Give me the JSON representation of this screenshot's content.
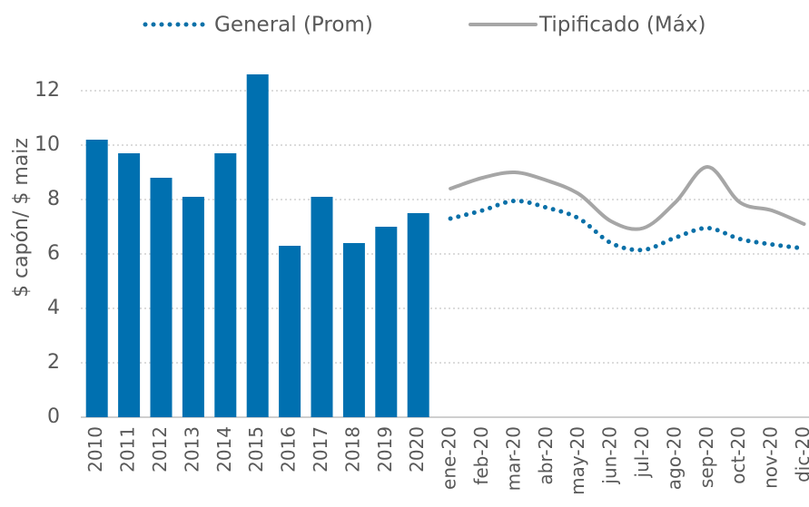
{
  "chart_data": {
    "type": "bar_line",
    "ylabel": "$ capón/ $ maiz",
    "categories": [
      "2010",
      "2011",
      "2012",
      "2013",
      "2014",
      "2015",
      "2016",
      "2017",
      "2018",
      "2019",
      "2020",
      "ene-20",
      "feb-20",
      "mar-20",
      "abr-20",
      "may-20",
      "jun-20",
      "jul-20",
      "ago-20",
      "sep-20",
      "oct-20",
      "nov-20",
      "dic-20"
    ],
    "series": [
      {
        "type": "bar",
        "color": "#0070b0",
        "values": [
          10.2,
          9.7,
          8.8,
          8.1,
          9.7,
          12.6,
          6.3,
          8.1,
          6.4,
          7.0,
          7.5,
          null,
          null,
          null,
          null,
          null,
          null,
          null,
          null,
          null,
          null,
          null,
          null
        ]
      },
      {
        "type": "line",
        "name": "General (Prom)",
        "color": "#0a70a8",
        "dash": "dotted",
        "values": [
          null,
          null,
          null,
          null,
          null,
          null,
          null,
          null,
          null,
          null,
          null,
          7.3,
          7.6,
          7.95,
          7.7,
          7.3,
          6.4,
          6.15,
          6.6,
          6.95,
          6.55,
          6.35,
          6.2
        ]
      },
      {
        "type": "line",
        "name": "Tipificado (Máx)",
        "color": "#a6a6a6",
        "dash": "solid",
        "values": [
          null,
          null,
          null,
          null,
          null,
          null,
          null,
          null,
          null,
          null,
          null,
          8.4,
          8.8,
          9.0,
          8.7,
          8.2,
          7.2,
          6.95,
          7.9,
          9.2,
          7.9,
          7.6,
          7.1
        ]
      }
    ],
    "ylim": [
      0,
      12
    ],
    "yticks": [
      0,
      2,
      4,
      6,
      8,
      10,
      12
    ],
    "grid": true,
    "legend": "top"
  }
}
